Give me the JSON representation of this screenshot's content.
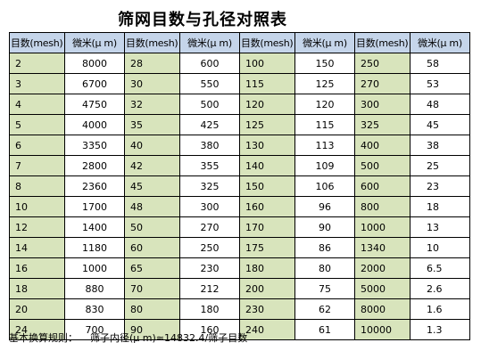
{
  "title": "筛网目数与孔径对照表",
  "headers": [
    "目数(mesh)",
    "微米(μ m)",
    "目数(mesh)",
    "微米(μ m)",
    "目数(mesh)",
    "微米(μ m)",
    "目数(mesh)",
    "微米(μ m)"
  ],
  "rows": [
    [
      "2",
      "8000",
      "28",
      "600",
      "100",
      "150",
      "250",
      "58"
    ],
    [
      "3",
      "6700",
      "30",
      "550",
      "115",
      "125",
      "270",
      "53"
    ],
    [
      "4",
      "4750",
      "32",
      "500",
      "120",
      "120",
      "300",
      "48"
    ],
    [
      "5",
      "4000",
      "35",
      "425",
      "125",
      "115",
      "325",
      "45"
    ],
    [
      "6",
      "3350",
      "40",
      "380",
      "130",
      "113",
      "400",
      "38"
    ],
    [
      "7",
      "2800",
      "42",
      "355",
      "140",
      "109",
      "500",
      "25"
    ],
    [
      "8",
      "2360",
      "45",
      "325",
      "150",
      "106",
      "600",
      "23"
    ],
    [
      "10",
      "1700",
      "48",
      "300",
      "160",
      "96",
      "800",
      "18"
    ],
    [
      "12",
      "1400",
      "50",
      "270",
      "170",
      "90",
      "1000",
      "13"
    ],
    [
      "14",
      "1180",
      "60",
      "250",
      "175",
      "86",
      "1340",
      "10"
    ],
    [
      "16",
      "1000",
      "65",
      "230",
      "180",
      "80",
      "2000",
      "6.5"
    ],
    [
      "18",
      "880",
      "70",
      "212",
      "200",
      "75",
      "5000",
      "2.6"
    ],
    [
      "20",
      "830",
      "80",
      "180",
      "230",
      "62",
      "8000",
      "1.6"
    ],
    [
      "24",
      "700",
      "90",
      "160",
      "240",
      "61",
      "10000",
      "1.3"
    ]
  ],
  "footer": {
    "label": "基本换算规则：",
    "rule": "筛子内径(μ m)≈14832.4/筛子目数"
  },
  "colors": {
    "header_bg": "#c5d5ea",
    "mesh_bg": "#d8e4bc",
    "micron_bg": "#ffffff"
  }
}
